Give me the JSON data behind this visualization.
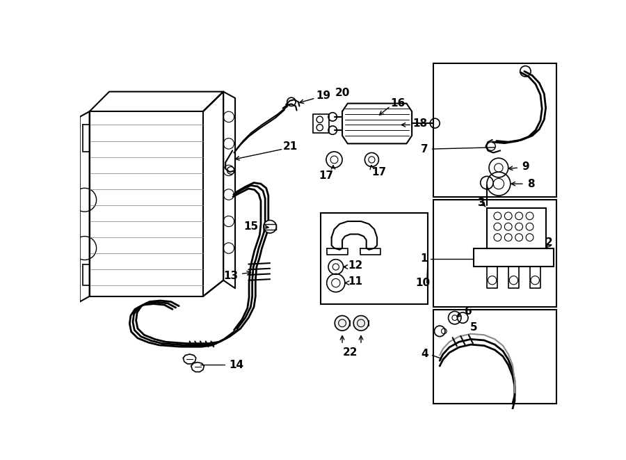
{
  "bg_color": "#ffffff",
  "lc": "#000000",
  "lw": 1.2,
  "tlw": 0.7,
  "fig_w": 9.0,
  "fig_h": 6.61,
  "dpi": 100
}
